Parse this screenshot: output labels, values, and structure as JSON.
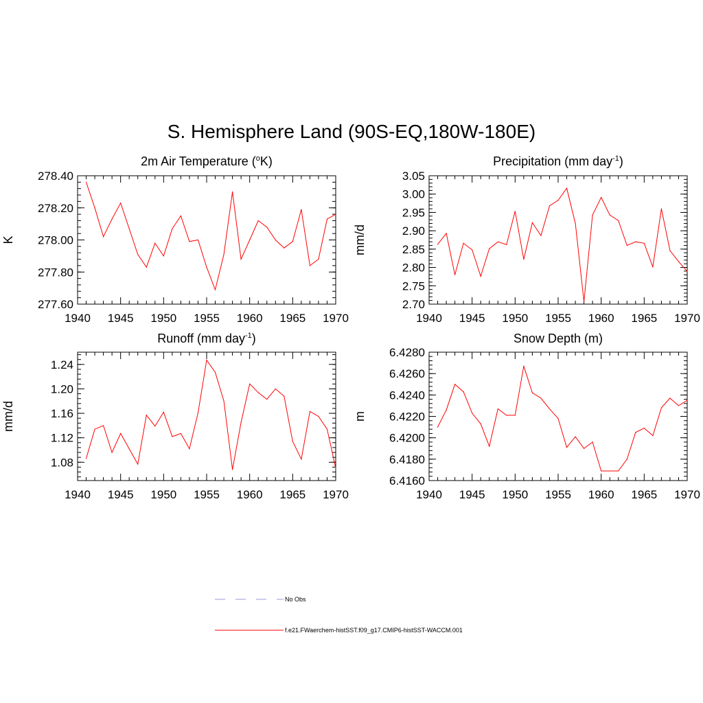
{
  "title": "S. Hemisphere Land (90S-EQ,180W-180E)",
  "colors": {
    "series": "#ff0000",
    "obs": "#9999dd",
    "axis": "#000000"
  },
  "legend": {
    "items": [
      {
        "label": "No Obs",
        "style": "dashed",
        "color": "#9999dd"
      },
      {
        "label": "f.e21.FWaerchem-histSST.f09_g17.CMIP6-histSST-WACCM.001",
        "style": "solid",
        "color": "#ff0000"
      }
    ]
  },
  "chart_data": [
    {
      "type": "line",
      "title": "2m Air Temperature (",
      "title_sup": "o",
      "title_tail": "K)",
      "ylabel": "K",
      "xlim": [
        1940,
        1970
      ],
      "ylim": [
        277.6,
        278.4
      ],
      "xticks": [
        1940,
        1945,
        1950,
        1955,
        1960,
        1965,
        1970
      ],
      "yticks": [
        277.6,
        277.8,
        278.0,
        278.2,
        278.4
      ],
      "ytick_labels": [
        "277.60",
        "277.80",
        "278.00",
        "278.20",
        "278.40"
      ],
      "x": [
        1941,
        1942,
        1943,
        1944,
        1945,
        1946,
        1947,
        1948,
        1949,
        1950,
        1951,
        1952,
        1953,
        1954,
        1955,
        1956,
        1957,
        1958,
        1959,
        1960,
        1961,
        1962,
        1963,
        1964,
        1965,
        1966,
        1967,
        1968,
        1969,
        1970
      ],
      "values": [
        278.36,
        278.2,
        278.02,
        278.13,
        278.23,
        278.07,
        277.91,
        277.83,
        277.98,
        277.9,
        278.07,
        278.15,
        277.99,
        278.0,
        277.83,
        277.69,
        277.91,
        278.3,
        277.88,
        278.0,
        278.12,
        278.08,
        278.0,
        277.95,
        277.99,
        278.19,
        277.84,
        277.88,
        278.13,
        278.16
      ]
    },
    {
      "type": "line",
      "title": "Precipitation (mm day",
      "title_sup": "-1",
      "title_tail": ")",
      "ylabel": "mm/d",
      "xlim": [
        1940,
        1970
      ],
      "ylim": [
        2.7,
        3.05
      ],
      "xticks": [
        1940,
        1945,
        1950,
        1955,
        1960,
        1965,
        1970
      ],
      "yticks": [
        2.7,
        2.75,
        2.8,
        2.85,
        2.9,
        2.95,
        3.0,
        3.05
      ],
      "ytick_labels": [
        "2.70",
        "2.75",
        "2.80",
        "2.85",
        "2.90",
        "2.95",
        "3.00",
        "3.05"
      ],
      "x": [
        1941,
        1942,
        1943,
        1944,
        1945,
        1946,
        1947,
        1948,
        1949,
        1950,
        1951,
        1952,
        1953,
        1954,
        1955,
        1956,
        1957,
        1958,
        1959,
        1960,
        1961,
        1962,
        1963,
        1964,
        1965,
        1966,
        1967,
        1968,
        1969,
        1970
      ],
      "values": [
        2.863,
        2.893,
        2.78,
        2.866,
        2.848,
        2.776,
        2.851,
        2.87,
        2.862,
        2.953,
        2.822,
        2.922,
        2.887,
        2.968,
        2.983,
        3.016,
        2.92,
        2.707,
        2.943,
        2.991,
        2.943,
        2.928,
        2.86,
        2.87,
        2.866,
        2.801,
        2.96,
        2.846,
        2.816,
        2.789
      ]
    },
    {
      "type": "line",
      "title": "Runoff (mm day",
      "title_sup": "-1",
      "title_tail": ")",
      "ylabel": "mm/d",
      "xlim": [
        1940,
        1970
      ],
      "ylim": [
        1.05,
        1.26
      ],
      "xticks": [
        1940,
        1945,
        1950,
        1955,
        1960,
        1965,
        1970
      ],
      "yticks": [
        1.08,
        1.12,
        1.16,
        1.2,
        1.24
      ],
      "ytick_labels": [
        "1.08",
        "1.12",
        "1.16",
        "1.20",
        "1.24"
      ],
      "x": [
        1941,
        1942,
        1943,
        1944,
        1945,
        1946,
        1947,
        1948,
        1949,
        1950,
        1951,
        1952,
        1953,
        1954,
        1955,
        1956,
        1957,
        1958,
        1959,
        1960,
        1961,
        1962,
        1963,
        1964,
        1965,
        1966,
        1967,
        1968,
        1969,
        1970
      ],
      "values": [
        1.086,
        1.134,
        1.14,
        1.096,
        1.127,
        1.102,
        1.077,
        1.157,
        1.139,
        1.162,
        1.122,
        1.127,
        1.102,
        1.161,
        1.247,
        1.227,
        1.18,
        1.068,
        1.145,
        1.208,
        1.194,
        1.183,
        1.2,
        1.188,
        1.114,
        1.085,
        1.163,
        1.155,
        1.134,
        1.07
      ]
    },
    {
      "type": "line",
      "title": "Snow Depth (m)",
      "title_sup": "",
      "title_tail": "",
      "ylabel": "m",
      "xlim": [
        1940,
        1970
      ],
      "ylim": [
        6.416,
        6.428
      ],
      "xticks": [
        1940,
        1945,
        1950,
        1955,
        1960,
        1965,
        1970
      ],
      "yticks": [
        6.416,
        6.418,
        6.42,
        6.422,
        6.424,
        6.426,
        6.428
      ],
      "ytick_labels": [
        "6.4160",
        "6.4180",
        "6.4200",
        "6.4220",
        "6.4240",
        "6.4260",
        "6.4280"
      ],
      "x": [
        1941,
        1942,
        1943,
        1944,
        1945,
        1946,
        1947,
        1948,
        1949,
        1950,
        1951,
        1952,
        1953,
        1954,
        1955,
        1956,
        1957,
        1958,
        1959,
        1960,
        1961,
        1962,
        1963,
        1964,
        1965,
        1966,
        1967,
        1968,
        1969,
        1970
      ],
      "values": [
        6.421,
        6.4226,
        6.425,
        6.4243,
        6.4223,
        6.4213,
        6.4192,
        6.4227,
        6.4221,
        6.4221,
        6.4267,
        6.4242,
        6.4237,
        6.4227,
        6.4218,
        6.4191,
        6.4201,
        6.419,
        6.4196,
        6.4169,
        6.4169,
        6.4169,
        6.418,
        6.4205,
        6.4209,
        6.4202,
        6.4228,
        6.4237,
        6.423,
        6.4235
      ]
    }
  ]
}
